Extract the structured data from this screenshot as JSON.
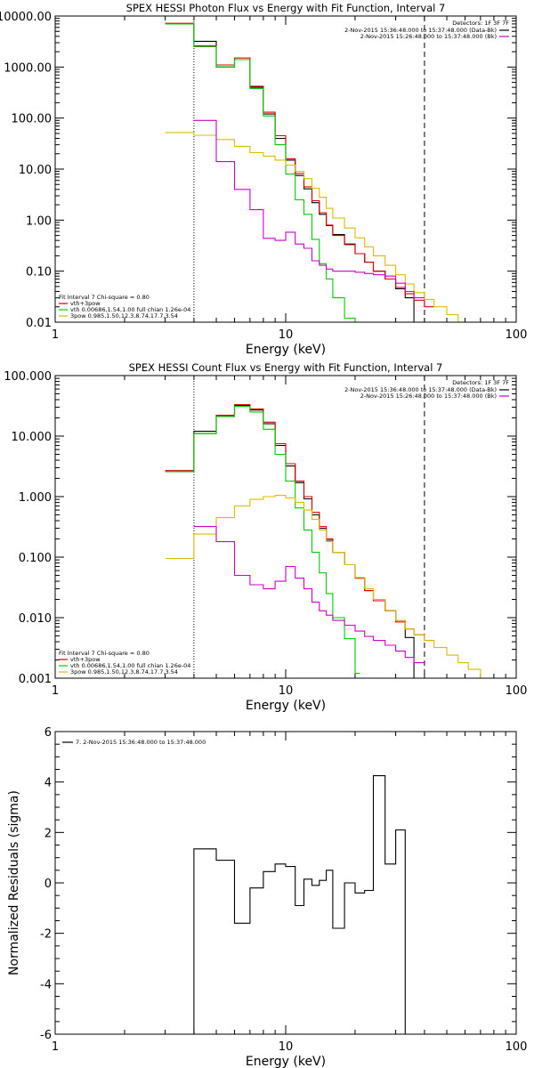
{
  "chart_data": [
    {
      "type": "line",
      "title": "SPEX HESSI Photon Flux vs Energy with Fit Function, Interval 7",
      "xlabel": "Energy (keV)",
      "ylabel": "",
      "xscale": "log",
      "yscale": "log",
      "xlim": [
        1,
        100
      ],
      "ylim": [
        0.01,
        10000
      ],
      "xticks": [
        {
          "v": 1,
          "label": "1"
        },
        {
          "v": 10,
          "label": "10"
        },
        {
          "v": 100,
          "label": "100"
        }
      ],
      "yticks": [
        {
          "v": 10000,
          "label": "10000.00"
        },
        {
          "v": 1000,
          "label": "1000.00"
        },
        {
          "v": 100,
          "label": "100.00"
        },
        {
          "v": 10,
          "label": "10.00"
        },
        {
          "v": 1,
          "label": "1.00"
        },
        {
          "v": 0.1,
          "label": "0.10"
        },
        {
          "v": 0.01,
          "label": "0.01"
        }
      ],
      "vlines": [
        {
          "x": 4,
          "style": "dotted"
        },
        {
          "x": 40,
          "style": "dashed"
        }
      ],
      "legend_top": {
        "placement": "top-right",
        "header": "Detectors: 1F 3F 7F",
        "entries": [
          {
            "text": "2-Nov-2015 15:36:48.000 to 15:37:48.000 (Data-Bk)",
            "color": "#000000"
          },
          {
            "text": "2-Nov-2015 15:26:48.000 to 15:37:48.000 (Bk)",
            "color": "#cc00cc"
          }
        ]
      },
      "legend_bottom": {
        "placement": "bottom-left",
        "header": "Fit Interval 7   Chi-square = 0.80",
        "entries": [
          {
            "text": "vth+3pow",
            "color": "#dd0000"
          },
          {
            "text": "vth 0.00686,1.54,1.00  full chian 1.26e-04",
            "color": "#00cc00"
          },
          {
            "text": "3pow 0.985,1.50,12.3,8.74,17.7,3.54",
            "color": "#ddbb00"
          }
        ]
      },
      "series": [
        {
          "role": "data-bk",
          "color": "#000000",
          "edges": [
            3,
            4,
            5,
            6,
            7,
            8,
            9,
            10,
            11,
            12,
            13,
            14,
            15,
            16,
            18,
            20,
            22,
            24,
            27,
            30,
            33,
            36,
            40,
            44
          ],
          "values": [
            7000,
            3200,
            1000,
            1400,
            400,
            120,
            40,
            15,
            7.5,
            4.1,
            2.2,
            1.3,
            0.78,
            0.52,
            0.34,
            0.22,
            0.15,
            0.1,
            0.07,
            0.045,
            0.03,
            0.01,
            0.01
          ]
        },
        {
          "role": "vth+3pow",
          "color": "#dd0000",
          "edges": [
            3,
            4,
            5,
            6,
            7,
            8,
            9,
            10,
            11,
            12,
            13,
            14,
            15,
            16,
            18,
            20,
            22,
            24,
            27,
            30,
            33,
            36,
            40,
            44
          ],
          "values": [
            7200,
            2600,
            1100,
            1500,
            420,
            130,
            45,
            16,
            8.2,
            4.5,
            2.4,
            1.4,
            0.8,
            0.5,
            0.33,
            0.22,
            0.15,
            0.1,
            0.07,
            0.048,
            0.036,
            0.027,
            0.02
          ]
        },
        {
          "role": "vth",
          "color": "#00cc00",
          "edges": [
            3,
            4,
            5,
            6,
            7,
            8,
            9,
            10,
            11,
            12,
            13,
            14,
            15,
            16,
            18,
            20,
            21
          ],
          "values": [
            7000,
            2500,
            1000,
            1400,
            380,
            110,
            30,
            8,
            2.5,
            1.3,
            0.42,
            0.14,
            0.07,
            0.03,
            0.012,
            0.003
          ]
        },
        {
          "role": "3pow",
          "color": "#ddbb00",
          "edges": [
            3,
            4,
            5,
            6,
            7,
            8,
            9,
            10,
            11,
            12,
            13,
            14,
            15,
            16,
            18,
            20,
            22,
            24,
            27,
            30,
            33,
            36,
            40,
            44,
            50,
            56,
            62
          ],
          "values": [
            52,
            46,
            38,
            28,
            21,
            18,
            15,
            12,
            9,
            6.5,
            4.2,
            2.8,
            1.7,
            1.1,
            0.7,
            0.45,
            0.3,
            0.2,
            0.13,
            0.085,
            0.056,
            0.038,
            0.028,
            0.02,
            0.014,
            0.01
          ]
        },
        {
          "role": "bk",
          "color": "#cc00cc",
          "edges": [
            4,
            5,
            6,
            7,
            8,
            9,
            10,
            11,
            12,
            13,
            14,
            15,
            16,
            18,
            20,
            22,
            24,
            27,
            30,
            33,
            36,
            40
          ],
          "values": [
            90,
            14,
            4,
            1.6,
            0.44,
            0.4,
            0.58,
            0.34,
            0.28,
            0.16,
            0.13,
            0.11,
            0.1,
            0.1,
            0.095,
            0.09,
            0.085,
            0.08,
            0.058,
            0.04,
            0.03
          ]
        }
      ]
    },
    {
      "type": "line",
      "title": "SPEX HESSI Count Flux vs Energy with Fit Function, Interval 7",
      "xlabel": "Energy (keV)",
      "ylabel": "",
      "xscale": "log",
      "yscale": "log",
      "xlim": [
        1,
        100
      ],
      "ylim": [
        0.001,
        100
      ],
      "xticks": [
        {
          "v": 1,
          "label": "1"
        },
        {
          "v": 10,
          "label": "10"
        },
        {
          "v": 100,
          "label": "100"
        }
      ],
      "yticks": [
        {
          "v": 100,
          "label": "100.000"
        },
        {
          "v": 10,
          "label": "10.000"
        },
        {
          "v": 1,
          "label": "1.000"
        },
        {
          "v": 0.1,
          "label": "0.100"
        },
        {
          "v": 0.01,
          "label": "0.010"
        },
        {
          "v": 0.001,
          "label": "0.001"
        }
      ],
      "vlines": [
        {
          "x": 4,
          "style": "dotted"
        },
        {
          "x": 40,
          "style": "dashed"
        }
      ],
      "legend_top": {
        "placement": "top-right",
        "header": "Detectors: 1F 3F 7F",
        "entries": [
          {
            "text": "2-Nov-2015 15:36:48.000 to 15:37:48.000 (Data-Bk)",
            "color": "#000000"
          },
          {
            "text": "2-Nov-2015 15:26:48.000 to 15:37:48.000 (Bk)",
            "color": "#cc00cc"
          }
        ]
      },
      "legend_bottom": {
        "placement": "bottom-left",
        "header": "Fit Interval 7   Chi-square = 0.80",
        "entries": [
          {
            "text": "vth+3pow",
            "color": "#dd0000"
          },
          {
            "text": "vth 0.00686,1.54,1.00  full chian 1.26e-04",
            "color": "#00cc00"
          },
          {
            "text": "3pow 0.985,1.50,12.3,8.74,17.7,3.54",
            "color": "#ddbb00"
          }
        ]
      },
      "series": [
        {
          "role": "data-bk",
          "color": "#000000",
          "edges": [
            3,
            4,
            5,
            6,
            7,
            8,
            9,
            10,
            11,
            12,
            13,
            14,
            15,
            16,
            18,
            20,
            22,
            24,
            27,
            30,
            33,
            36,
            40,
            44
          ],
          "values": [
            2.6,
            12,
            22,
            32,
            27,
            16,
            7,
            3.2,
            1.7,
            0.92,
            0.5,
            0.3,
            0.19,
            0.12,
            0.075,
            0.045,
            0.028,
            0.019,
            0.013,
            0.009,
            0.0047,
            0.001,
            0.001
          ]
        },
        {
          "role": "vth+3pow",
          "color": "#dd0000",
          "edges": [
            3,
            4,
            5,
            6,
            7,
            8,
            9,
            10,
            11,
            12,
            13,
            14,
            15,
            16,
            18,
            20,
            22,
            24,
            27,
            30,
            33,
            36,
            40,
            44
          ],
          "values": [
            2.7,
            11,
            22,
            33,
            28,
            17,
            7.5,
            3.5,
            1.8,
            1.0,
            0.55,
            0.32,
            0.2,
            0.12,
            0.075,
            0.045,
            0.028,
            0.019,
            0.013,
            0.0085,
            0.0065,
            0.0052,
            0.0042
          ]
        },
        {
          "role": "vth",
          "color": "#00cc00",
          "edges": [
            3,
            4,
            5,
            6,
            7,
            8,
            9,
            10,
            11,
            12,
            13,
            14,
            15,
            16,
            18,
            20,
            21
          ],
          "values": [
            2.6,
            11,
            21,
            31,
            25,
            13,
            5,
            1.8,
            0.65,
            0.28,
            0.12,
            0.055,
            0.025,
            0.01,
            0.0045,
            0.0012
          ]
        },
        {
          "role": "3pow",
          "color": "#ddbb00",
          "edges": [
            3,
            4,
            5,
            6,
            7,
            8,
            9,
            10,
            11,
            12,
            13,
            14,
            15,
            16,
            18,
            20,
            22,
            24,
            27,
            30,
            33,
            36,
            40,
            44,
            50,
            56,
            62,
            70,
            76
          ],
          "values": [
            0.095,
            0.24,
            0.45,
            0.7,
            0.9,
            1.0,
            1.05,
            0.95,
            0.8,
            0.6,
            0.42,
            0.28,
            0.18,
            0.12,
            0.075,
            0.046,
            0.03,
            0.02,
            0.013,
            0.009,
            0.0065,
            0.0052,
            0.0042,
            0.0032,
            0.0024,
            0.0018,
            0.0014,
            0.001
          ]
        },
        {
          "role": "bk",
          "color": "#cc00cc",
          "edges": [
            4,
            5,
            6,
            7,
            8,
            9,
            10,
            11,
            12,
            13,
            14,
            15,
            16,
            18,
            20,
            22,
            24,
            27,
            30,
            33,
            36,
            40
          ],
          "values": [
            0.32,
            0.18,
            0.05,
            0.035,
            0.03,
            0.04,
            0.07,
            0.045,
            0.03,
            0.018,
            0.013,
            0.011,
            0.009,
            0.0075,
            0.006,
            0.0049,
            0.0042,
            0.0035,
            0.0028,
            0.0022,
            0.0018
          ]
        }
      ]
    },
    {
      "type": "line",
      "title": "",
      "xlabel": "Energy (keV)",
      "ylabel": "Normalized Residuals (sigma)",
      "xscale": "log",
      "yscale": "linear",
      "xlim": [
        1,
        100
      ],
      "ylim": [
        -6,
        6
      ],
      "xticks": [
        {
          "v": 1,
          "label": "1"
        },
        {
          "v": 10,
          "label": "10"
        },
        {
          "v": 100,
          "label": "100"
        }
      ],
      "yticks": [
        {
          "v": 6,
          "label": "6"
        },
        {
          "v": 4,
          "label": "4"
        },
        {
          "v": 2,
          "label": "2"
        },
        {
          "v": 0,
          "label": "0"
        },
        {
          "v": -2,
          "label": "-2"
        },
        {
          "v": -4,
          "label": "-4"
        },
        {
          "v": -6,
          "label": "-6"
        }
      ],
      "vlines": [],
      "legend_top": {
        "placement": "top-left",
        "header": "",
        "entries": [
          {
            "text": "7. 2-Nov-2015 15:36:48.000 to 15:37:48.000",
            "color": "#000000"
          }
        ]
      },
      "legend_bottom": null,
      "series": [
        {
          "role": "residuals",
          "color": "#000000",
          "start_from_bottom": true,
          "edges": [
            4,
            5,
            6,
            7,
            8,
            9,
            10,
            11,
            12,
            13,
            14,
            15,
            16,
            18,
            20,
            22,
            24,
            27,
            30,
            33,
            36
          ],
          "values": [
            1.35,
            0.9,
            -1.6,
            -0.2,
            0.45,
            0.75,
            0.65,
            -0.9,
            0.15,
            -0.1,
            0.1,
            0.5,
            -1.8,
            0.0,
            -0.4,
            -0.3,
            4.25,
            0.75,
            2.1,
            -6.0
          ]
        }
      ]
    }
  ]
}
